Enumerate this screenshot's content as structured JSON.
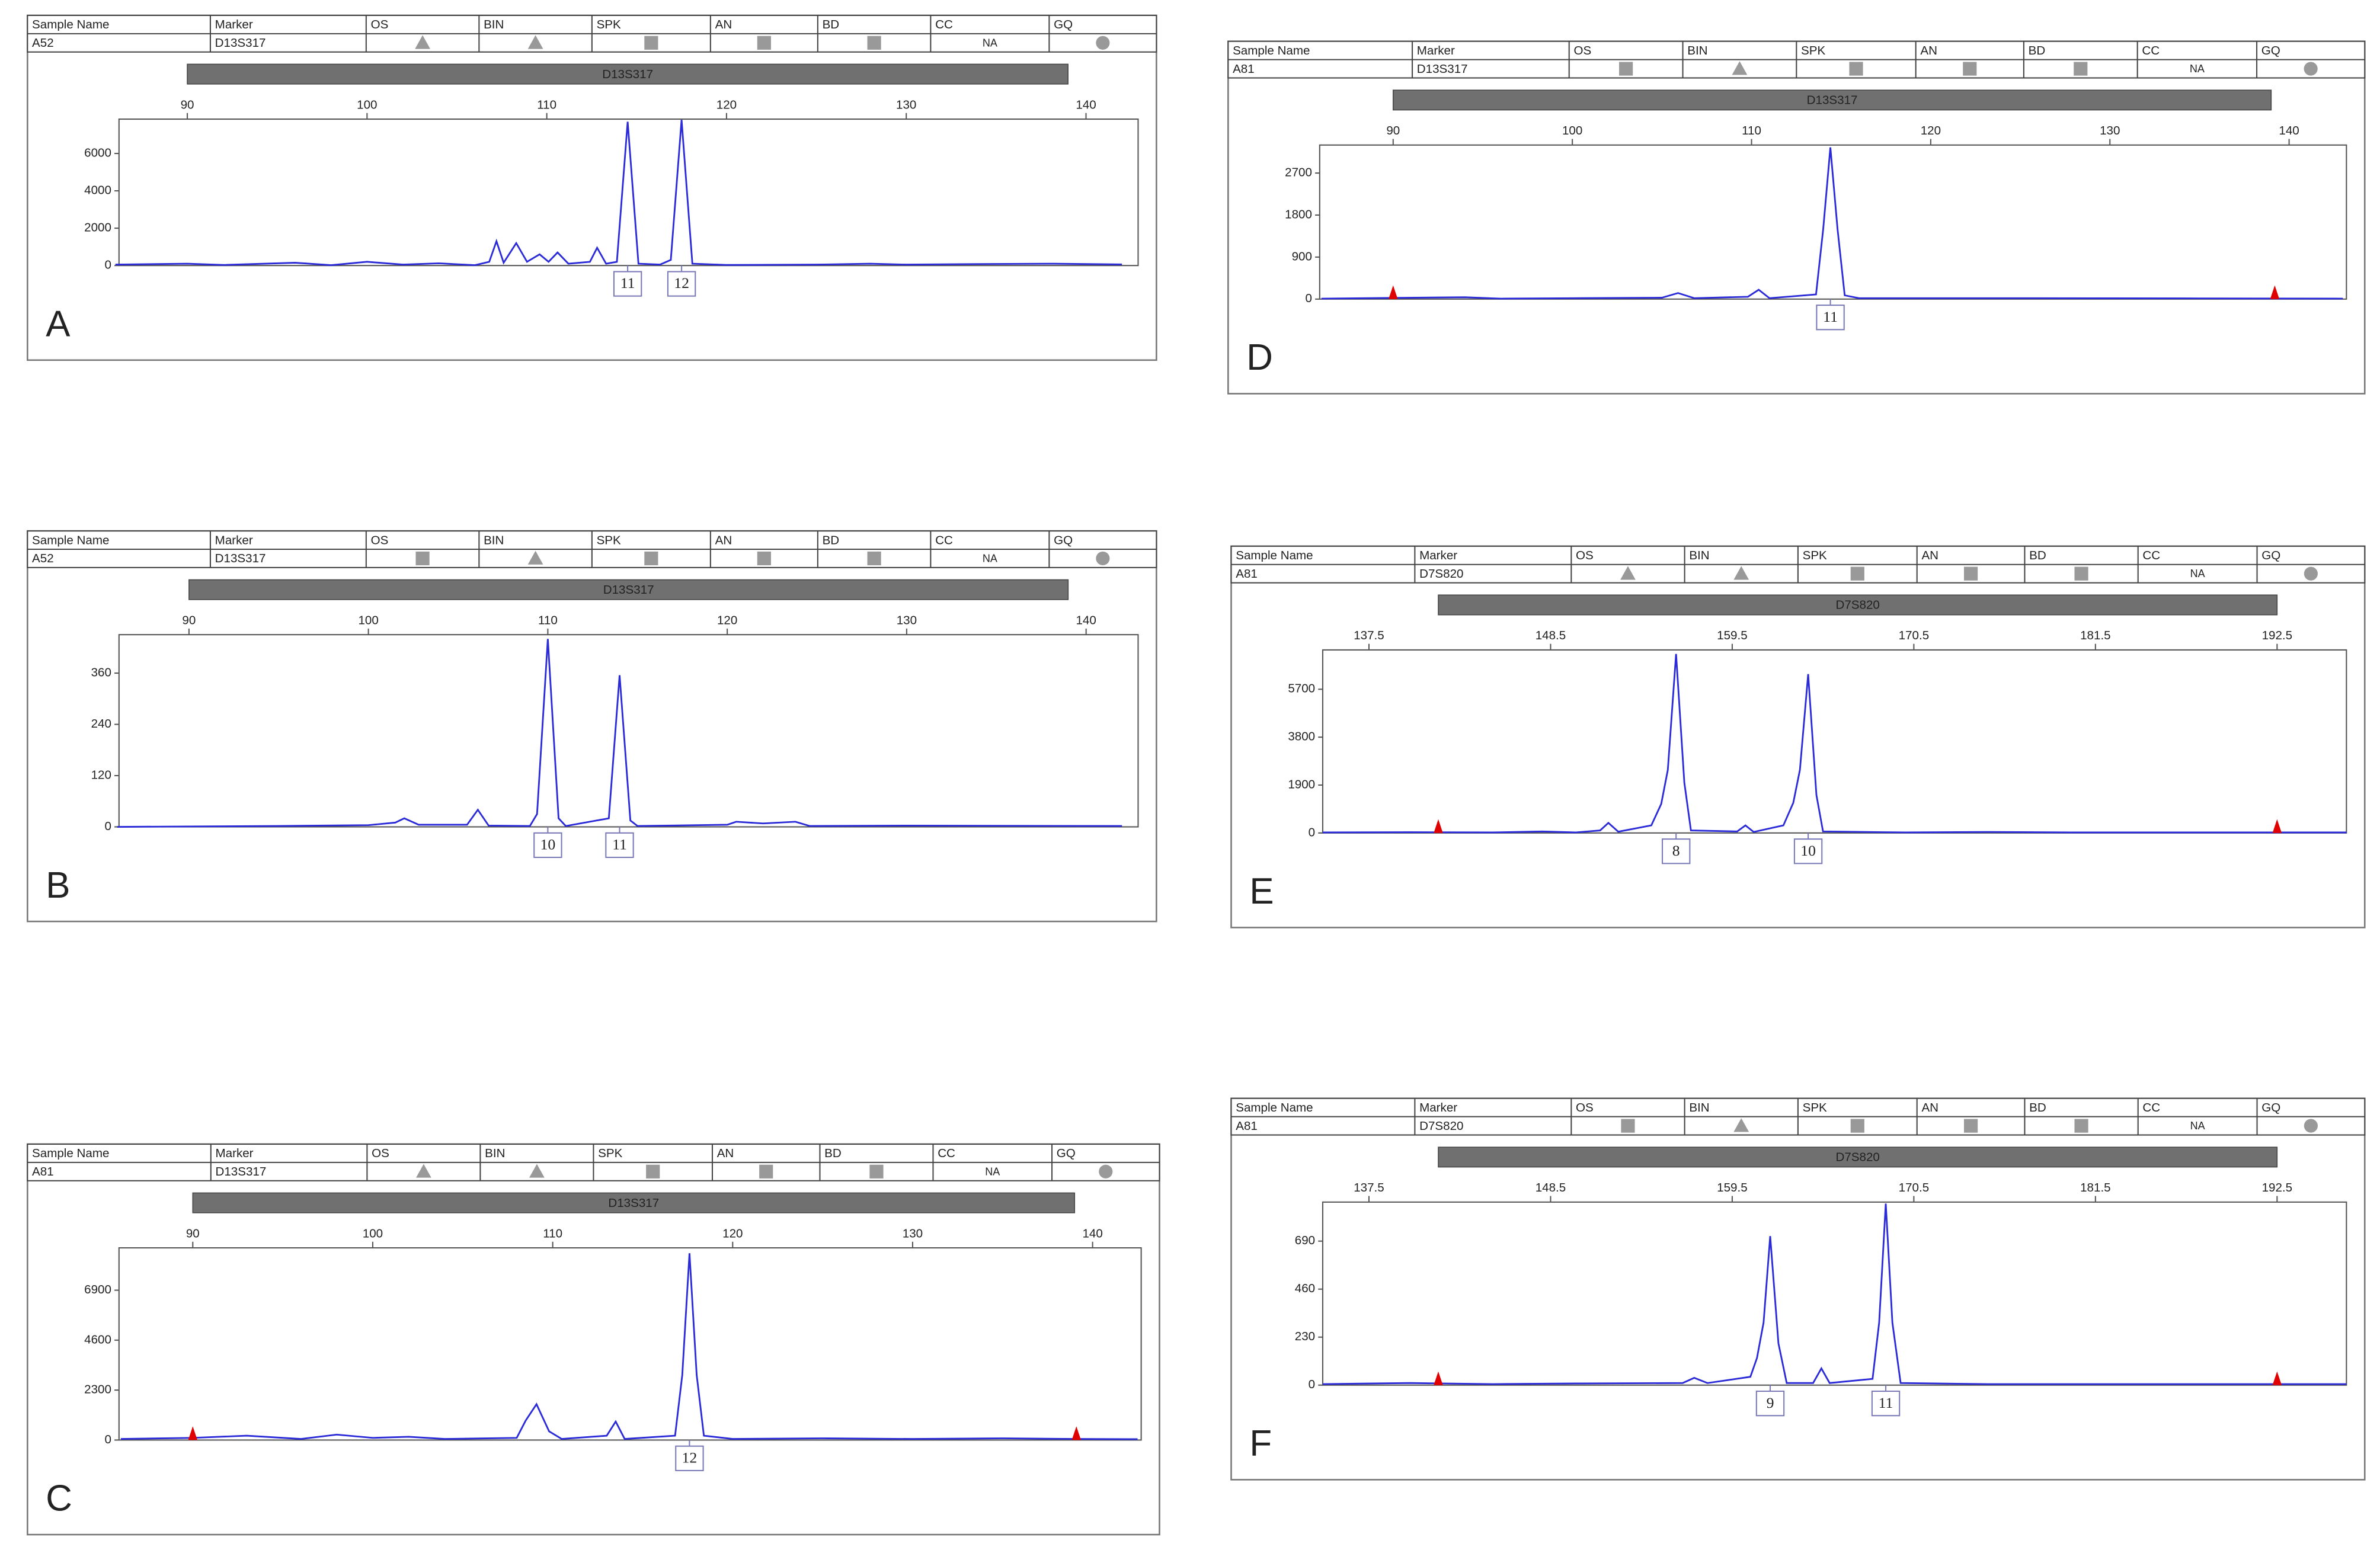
{
  "chart_data": [
    {
      "type": "line",
      "panel": "A",
      "columns": [
        "Sample Name",
        "Marker",
        "OS",
        "BIN",
        "SPK",
        "AN",
        "BD",
        "CC",
        "GQ"
      ],
      "sample_name": "A52",
      "marker": "D13S317",
      "cc": "NA",
      "flag_shapes": [
        "triangle",
        "triangle",
        "square",
        "square",
        "square",
        "circle"
      ],
      "bin_label": "D13S317",
      "bin_range": [
        90,
        139
      ],
      "xlim": [
        86.2,
        142.9
      ],
      "xticks": [
        90,
        100,
        110,
        120,
        130,
        140
      ],
      "ylim": [
        0,
        7840
      ],
      "yticks": [
        0,
        2000,
        4000,
        6000
      ],
      "x": [
        86,
        90,
        92,
        96,
        98,
        100,
        102,
        104,
        106,
        106.8,
        107.2,
        107.6,
        108.3,
        108.9,
        109.6,
        110.1,
        110.6,
        111.2,
        112.4,
        112.8,
        113.3,
        113.9,
        114.5,
        115.1,
        116.3,
        116.9,
        117.5,
        118.1,
        120,
        125,
        128,
        130,
        134,
        138,
        142
      ],
      "series": [
        {
          "color": "#2a2ad8",
          "values": [
            50,
            100,
            30,
            150,
            20,
            200,
            50,
            120,
            20,
            200,
            1300,
            150,
            1200,
            200,
            600,
            200,
            700,
            100,
            200,
            950,
            100,
            200,
            7700,
            100,
            50,
            300,
            7800,
            100,
            30,
            50,
            100,
            50,
            80,
            100,
            60
          ]
        }
      ],
      "alleles": [
        {
          "x": 114.5,
          "label": "11"
        },
        {
          "x": 117.5,
          "label": "12"
        }
      ],
      "ladder_markers": [],
      "marker_color": "#e00000"
    },
    {
      "type": "line",
      "panel": "B",
      "columns": [
        "Sample Name",
        "Marker",
        "OS",
        "BIN",
        "SPK",
        "AN",
        "BD",
        "CC",
        "GQ"
      ],
      "sample_name": "A52",
      "marker": "D13S317",
      "cc": "NA",
      "flag_shapes": [
        "square",
        "triangle",
        "square",
        "square",
        "square",
        "circle"
      ],
      "bin_label": "D13S317",
      "bin_range": [
        90,
        139
      ],
      "xlim": [
        86.1,
        142.9
      ],
      "xticks": [
        90,
        100,
        110,
        120,
        130,
        140
      ],
      "ylim": [
        0,
        450
      ],
      "yticks": [
        0,
        120,
        240,
        360
      ],
      "x": [
        86,
        95,
        100,
        101.5,
        102,
        102.8,
        105.5,
        106.1,
        106.7,
        109,
        109.4,
        110,
        110.6,
        111,
        113.4,
        114,
        114.6,
        115,
        120,
        120.5,
        122,
        123.8,
        124.6,
        130,
        142
      ],
      "series": [
        {
          "color": "#2a2ad8",
          "values": [
            0,
            2,
            4,
            10,
            20,
            5,
            5,
            40,
            3,
            2,
            30,
            440,
            20,
            2,
            20,
            355,
            15,
            2,
            5,
            12,
            8,
            12,
            2,
            3,
            2
          ]
        }
      ],
      "alleles": [
        {
          "x": 110,
          "label": "10"
        },
        {
          "x": 114,
          "label": "11"
        }
      ],
      "ladder_markers": [],
      "marker_color": "#e00000"
    },
    {
      "type": "line",
      "panel": "C",
      "columns": [
        "Sample Name",
        "Marker",
        "OS",
        "BIN",
        "SPK",
        "AN",
        "BD",
        "CC",
        "GQ"
      ],
      "sample_name": "A81",
      "marker": "D13S317",
      "cc": "NA",
      "flag_shapes": [
        "triangle",
        "triangle",
        "square",
        "square",
        "square",
        "circle"
      ],
      "bin_label": "D13S317",
      "bin_range": [
        90,
        139
      ],
      "xlim": [
        85.9,
        142.7
      ],
      "xticks": [
        90,
        100,
        110,
        120,
        130,
        140
      ],
      "ylim": [
        0,
        8850
      ],
      "yticks": [
        0,
        2300,
        4600,
        6900
      ],
      "x": [
        86,
        90,
        93,
        96,
        98,
        100,
        102,
        104,
        108,
        108.5,
        109.1,
        109.8,
        110.5,
        113,
        113.5,
        114,
        116.8,
        117.2,
        117.6,
        118,
        118.4,
        120,
        125,
        130,
        135,
        139,
        142.5
      ],
      "series": [
        {
          "color": "#2a2ad8",
          "values": [
            50,
            100,
            200,
            50,
            250,
            100,
            150,
            50,
            100,
            900,
            1650,
            400,
            50,
            200,
            850,
            50,
            200,
            3000,
            8600,
            3000,
            200,
            50,
            80,
            50,
            80,
            50,
            40
          ]
        }
      ],
      "alleles": [
        {
          "x": 117.6,
          "label": "12"
        }
      ],
      "ladder_markers": [
        90,
        139.1
      ],
      "marker_color": "#e00000"
    },
    {
      "type": "line",
      "panel": "D",
      "columns": [
        "Sample Name",
        "Marker",
        "OS",
        "BIN",
        "SPK",
        "AN",
        "BD",
        "CC",
        "GQ"
      ],
      "sample_name": "A81",
      "marker": "D13S317",
      "cc": "NA",
      "flag_shapes": [
        "square",
        "triangle",
        "square",
        "square",
        "square",
        "circle"
      ],
      "bin_label": "D13S317",
      "bin_range": [
        90,
        139
      ],
      "xlim": [
        85.9,
        143.2
      ],
      "xticks": [
        90,
        100,
        110,
        120,
        130,
        140
      ],
      "ylim": [
        0,
        3300
      ],
      "yticks": [
        0,
        900,
        1800,
        2700
      ],
      "x": [
        86,
        94,
        96,
        100,
        105,
        105.9,
        106.8,
        109.8,
        110.4,
        111,
        113.6,
        114,
        114.4,
        114.8,
        115.2,
        116,
        125,
        135,
        143
      ],
      "series": [
        {
          "color": "#2a2ad8",
          "values": [
            10,
            40,
            10,
            20,
            30,
            130,
            20,
            50,
            200,
            20,
            100,
            1500,
            3250,
            1500,
            80,
            20,
            20,
            15,
            10
          ]
        }
      ],
      "alleles": [
        {
          "x": 114.4,
          "label": "11"
        }
      ],
      "ladder_markers": [
        90,
        139.2
      ],
      "marker_color": "#e00000"
    },
    {
      "type": "line",
      "panel": "E",
      "columns": [
        "Sample Name",
        "Marker",
        "OS",
        "BIN",
        "SPK",
        "AN",
        "BD",
        "CC",
        "GQ"
      ],
      "sample_name": "A81",
      "marker": "D7S820",
      "cc": "NA",
      "flag_shapes": [
        "triangle",
        "triangle",
        "square",
        "square",
        "square",
        "circle"
      ],
      "bin_label": "D7S820",
      "bin_range": [
        141.7,
        192.5
      ],
      "xlim": [
        134.7,
        196.7
      ],
      "xticks": [
        137.5,
        148.5,
        159.5,
        170.5,
        181.5,
        192.5
      ],
      "ylim": [
        0,
        7260
      ],
      "yticks": [
        0,
        1900,
        3800,
        5700
      ],
      "x": [
        134.7,
        140,
        145,
        148,
        150,
        151.5,
        152,
        152.6,
        154.6,
        155.2,
        155.6,
        156.1,
        156.6,
        157,
        159.8,
        160.3,
        160.8,
        162.6,
        163.2,
        163.6,
        164.1,
        164.6,
        165,
        170,
        175,
        180,
        190,
        196.7
      ],
      "series": [
        {
          "color": "#2a2ad8",
          "values": [
            20,
            30,
            20,
            60,
            20,
            100,
            400,
            50,
            300,
            1150,
            2500,
            7100,
            2000,
            100,
            60,
            300,
            40,
            300,
            1200,
            2500,
            6300,
            1500,
            60,
            20,
            40,
            20,
            20,
            20
          ]
        }
      ],
      "alleles": [
        {
          "x": 156.1,
          "label": "8"
        },
        {
          "x": 164.1,
          "label": "10"
        }
      ],
      "ladder_markers": [
        141.7,
        192.5
      ],
      "marker_color": "#e00000"
    },
    {
      "type": "line",
      "panel": "F",
      "columns": [
        "Sample Name",
        "Marker",
        "OS",
        "BIN",
        "SPK",
        "AN",
        "BD",
        "CC",
        "GQ"
      ],
      "sample_name": "A81",
      "marker": "D7S820",
      "cc": "NA",
      "flag_shapes": [
        "square",
        "triangle",
        "square",
        "square",
        "square",
        "circle"
      ],
      "bin_label": "D7S820",
      "bin_range": [
        141.7,
        192.5
      ],
      "xlim": [
        134.7,
        196.7
      ],
      "xticks": [
        137.5,
        148.5,
        159.5,
        170.5,
        181.5,
        192.5
      ],
      "ylim": [
        0,
        877
      ],
      "yticks": [
        0,
        230,
        460,
        690
      ],
      "x": [
        134.7,
        140,
        145,
        150,
        156.5,
        157.2,
        158,
        160.6,
        161,
        161.4,
        161.8,
        162.3,
        162.8,
        164.4,
        164.9,
        165.4,
        168,
        168.4,
        168.8,
        169.2,
        169.7,
        175,
        185,
        196.7
      ],
      "series": [
        {
          "color": "#2a2ad8",
          "values": [
            5,
            10,
            5,
            8,
            10,
            35,
            10,
            40,
            130,
            300,
            714,
            200,
            10,
            10,
            80,
            10,
            30,
            300,
            870,
            300,
            10,
            5,
            5,
            5
          ]
        }
      ],
      "alleles": [
        {
          "x": 161.8,
          "label": "9"
        },
        {
          "x": 168.8,
          "label": "11"
        }
      ],
      "ladder_markers": [
        141.7,
        192.5
      ],
      "marker_color": "#e00000"
    }
  ]
}
